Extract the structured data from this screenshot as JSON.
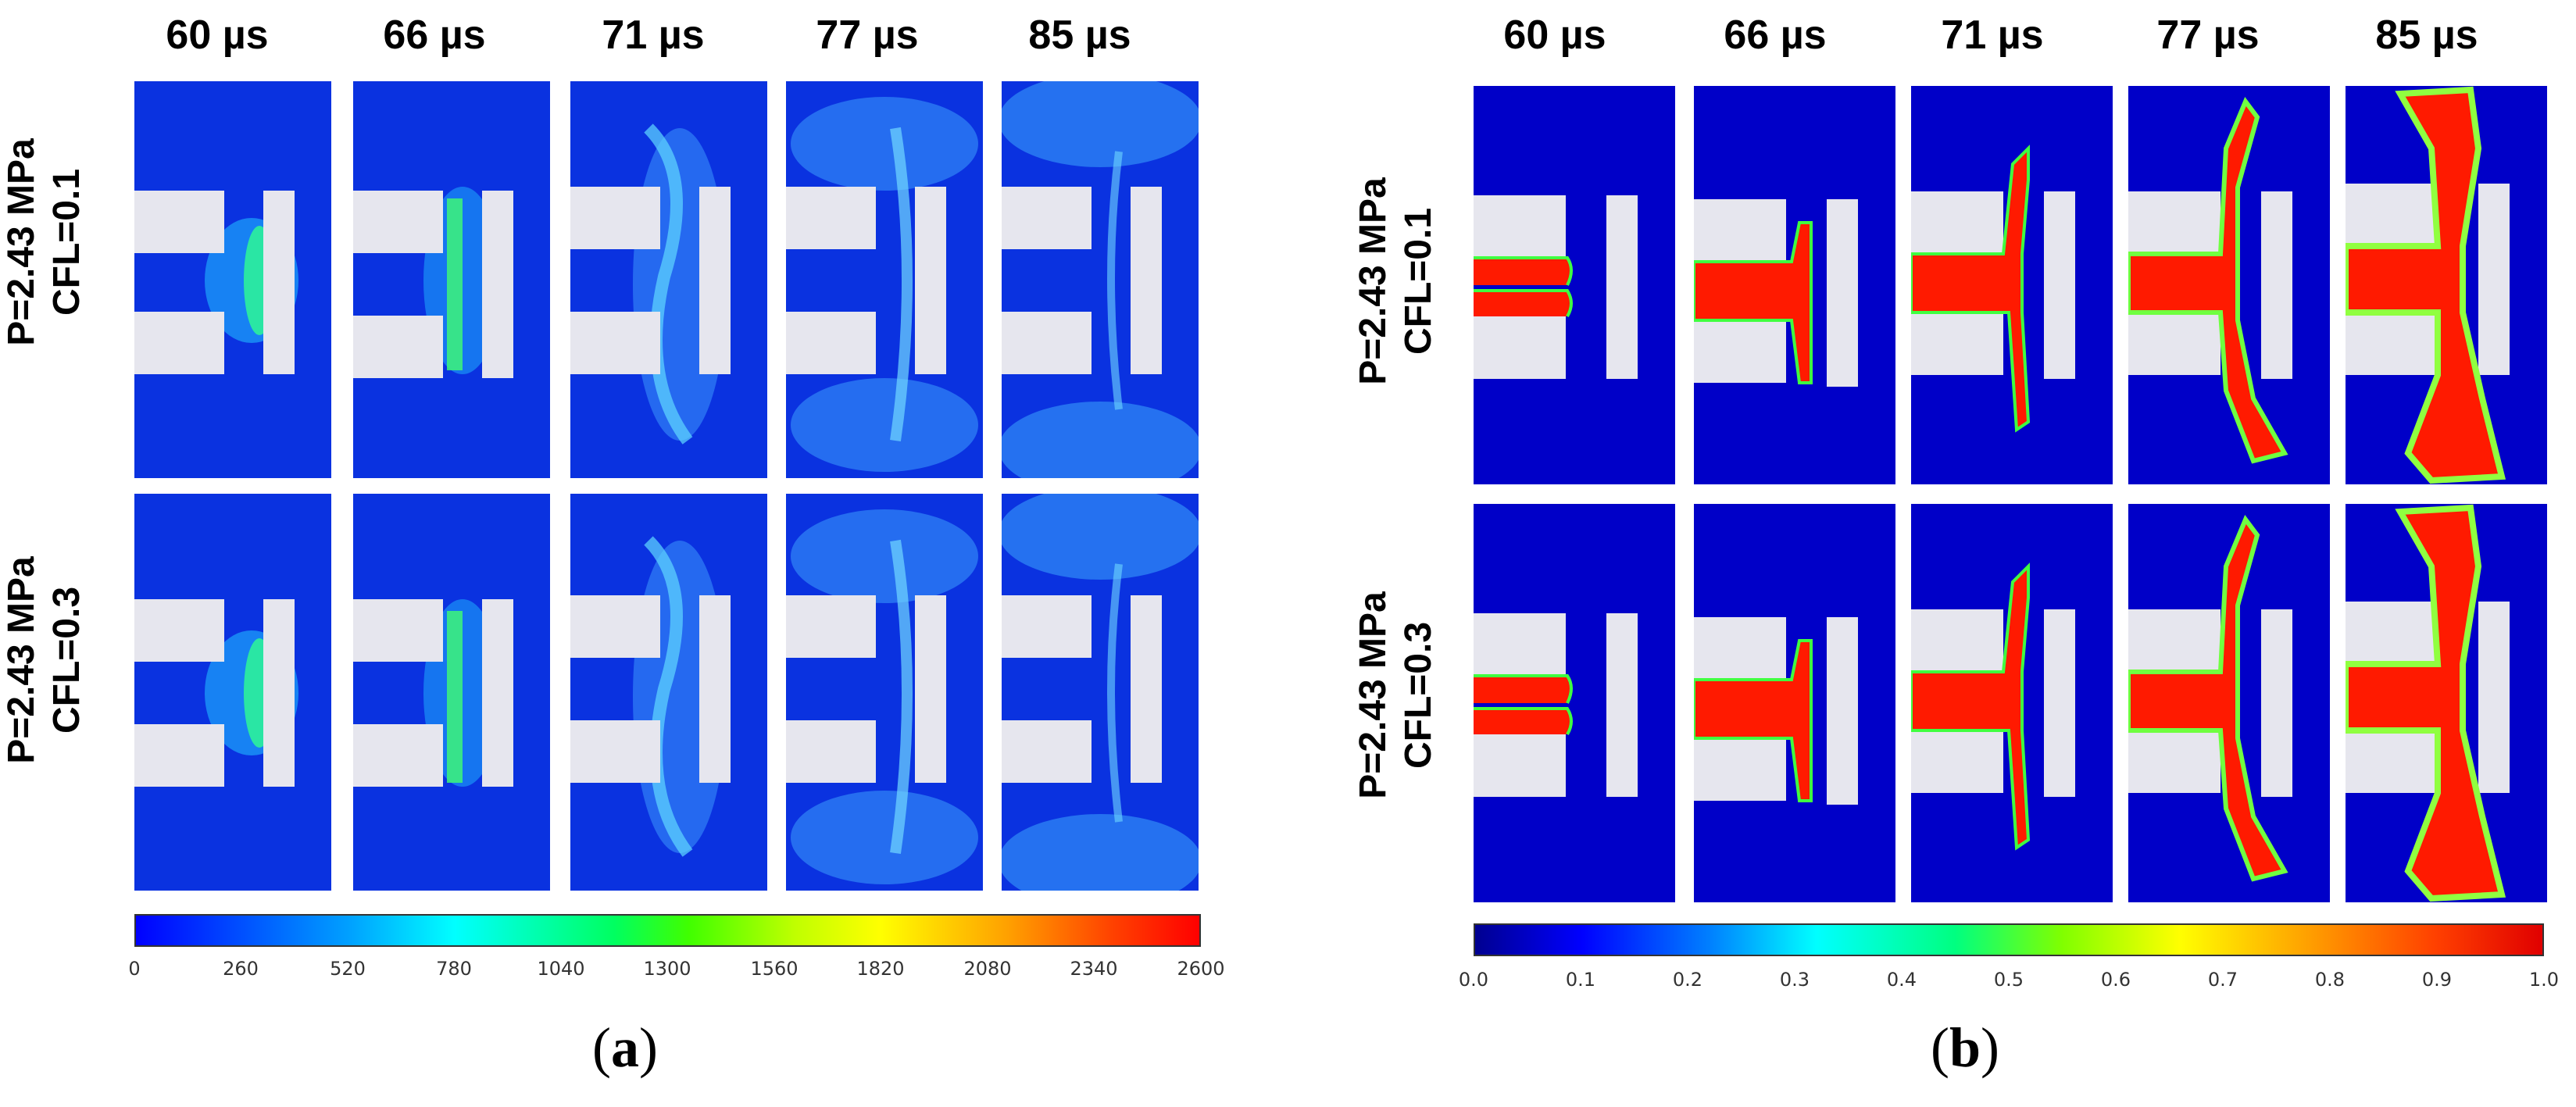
{
  "panels": [
    {
      "id": "a",
      "times": [
        "60 µs",
        "66 µs",
        "71 µs",
        "77 µs",
        "85 µs"
      ],
      "rows": [
        {
          "pressure": "P=2.43 MPa",
          "cfl": "CFL=0.1"
        },
        {
          "pressure": "P=2.43 MPa",
          "cfl": "CFL=0.3"
        }
      ],
      "colorbar": {
        "ticks": [
          "0",
          "260",
          "520",
          "780",
          "1040",
          "1300",
          "1560",
          "1820",
          "2080",
          "2340",
          "2600"
        ],
        "min": 0,
        "max": 2600
      },
      "label_open": "(",
      "label_letter": "a",
      "label_close": ")"
    },
    {
      "id": "b",
      "times": [
        "60 µs",
        "66 µs",
        "71 µs",
        "77 µs",
        "85 µs"
      ],
      "rows": [
        {
          "pressure": "P=2.43 MPa",
          "cfl": "CFL=0.1"
        },
        {
          "pressure": "P=2.43 MPa",
          "cfl": "CFL=0.3"
        }
      ],
      "colorbar": {
        "ticks": [
          "0.0",
          "0.1",
          "0.2",
          "0.3",
          "0.4",
          "0.5",
          "0.6",
          "0.7",
          "0.8",
          "0.9",
          "1.0"
        ],
        "min": 0.0,
        "max": 1.0
      },
      "label_open": "(",
      "label_letter": "b",
      "label_close": ")"
    }
  ],
  "colors": {
    "field_blue_a": "#0a32e0",
    "field_blue_b": "#0000c8",
    "wall_gray": "#e6e6ee",
    "jet_red": "#ff1a00"
  }
}
